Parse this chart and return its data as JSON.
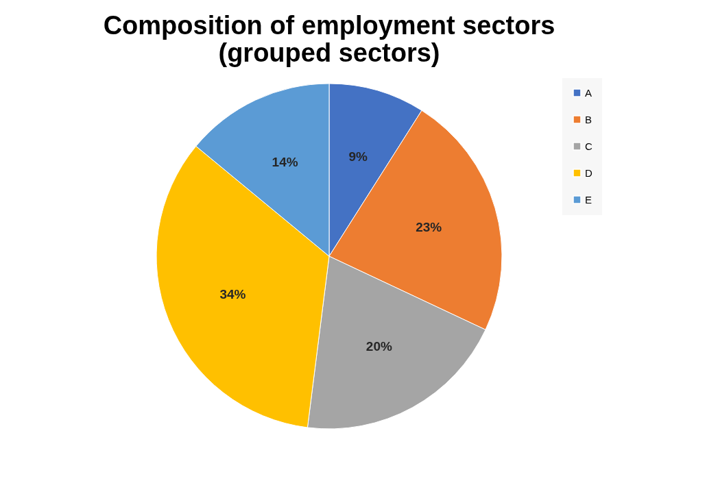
{
  "chart_data": {
    "type": "pie",
    "title": [
      "Composition of employment sectors",
      "(grouped sectors)"
    ],
    "categories": [
      "A",
      "B",
      "C",
      "D",
      "E"
    ],
    "values": [
      9,
      23,
      20,
      34,
      14
    ],
    "colors": [
      "#4472c4",
      "#ed7d31",
      "#a5a5a5",
      "#ffc000",
      "#5b9bd5"
    ],
    "value_labels": [
      "9%",
      "23%",
      "20%",
      "34%",
      "14%"
    ],
    "legend": "right"
  }
}
